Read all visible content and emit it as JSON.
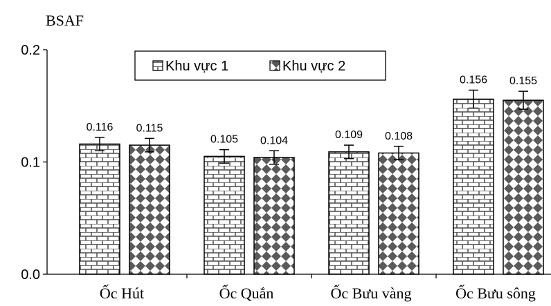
{
  "chart_data": {
    "type": "bar",
    "ylabel": "BSAF",
    "ylim": [
      0,
      0.2
    ],
    "yticks": [
      "0.0",
      "0.1",
      "0.2"
    ],
    "yticks_values": [
      0,
      0.1,
      0.2
    ],
    "categories": [
      "Ốc Hút",
      "Ốc Quắn",
      "Ốc Bưu vàng",
      "Ốc Bưu sông"
    ],
    "series": [
      {
        "name": "Khu vực 1",
        "pattern": "brick",
        "values": [
          0.116,
          0.105,
          0.109,
          0.156
        ],
        "labels": [
          "0.116",
          "0.105",
          "0.109",
          "0.156"
        ],
        "error": [
          0.006,
          0.006,
          0.006,
          0.008
        ]
      },
      {
        "name": "Khu vực 2",
        "pattern": "diamond",
        "values": [
          0.115,
          0.104,
          0.108,
          0.155
        ],
        "labels": [
          "0.115",
          "0.104",
          "0.108",
          "0.155"
        ],
        "error": [
          0.006,
          0.006,
          0.006,
          0.008
        ]
      }
    ],
    "grid": false,
    "legend_position": "top"
  }
}
